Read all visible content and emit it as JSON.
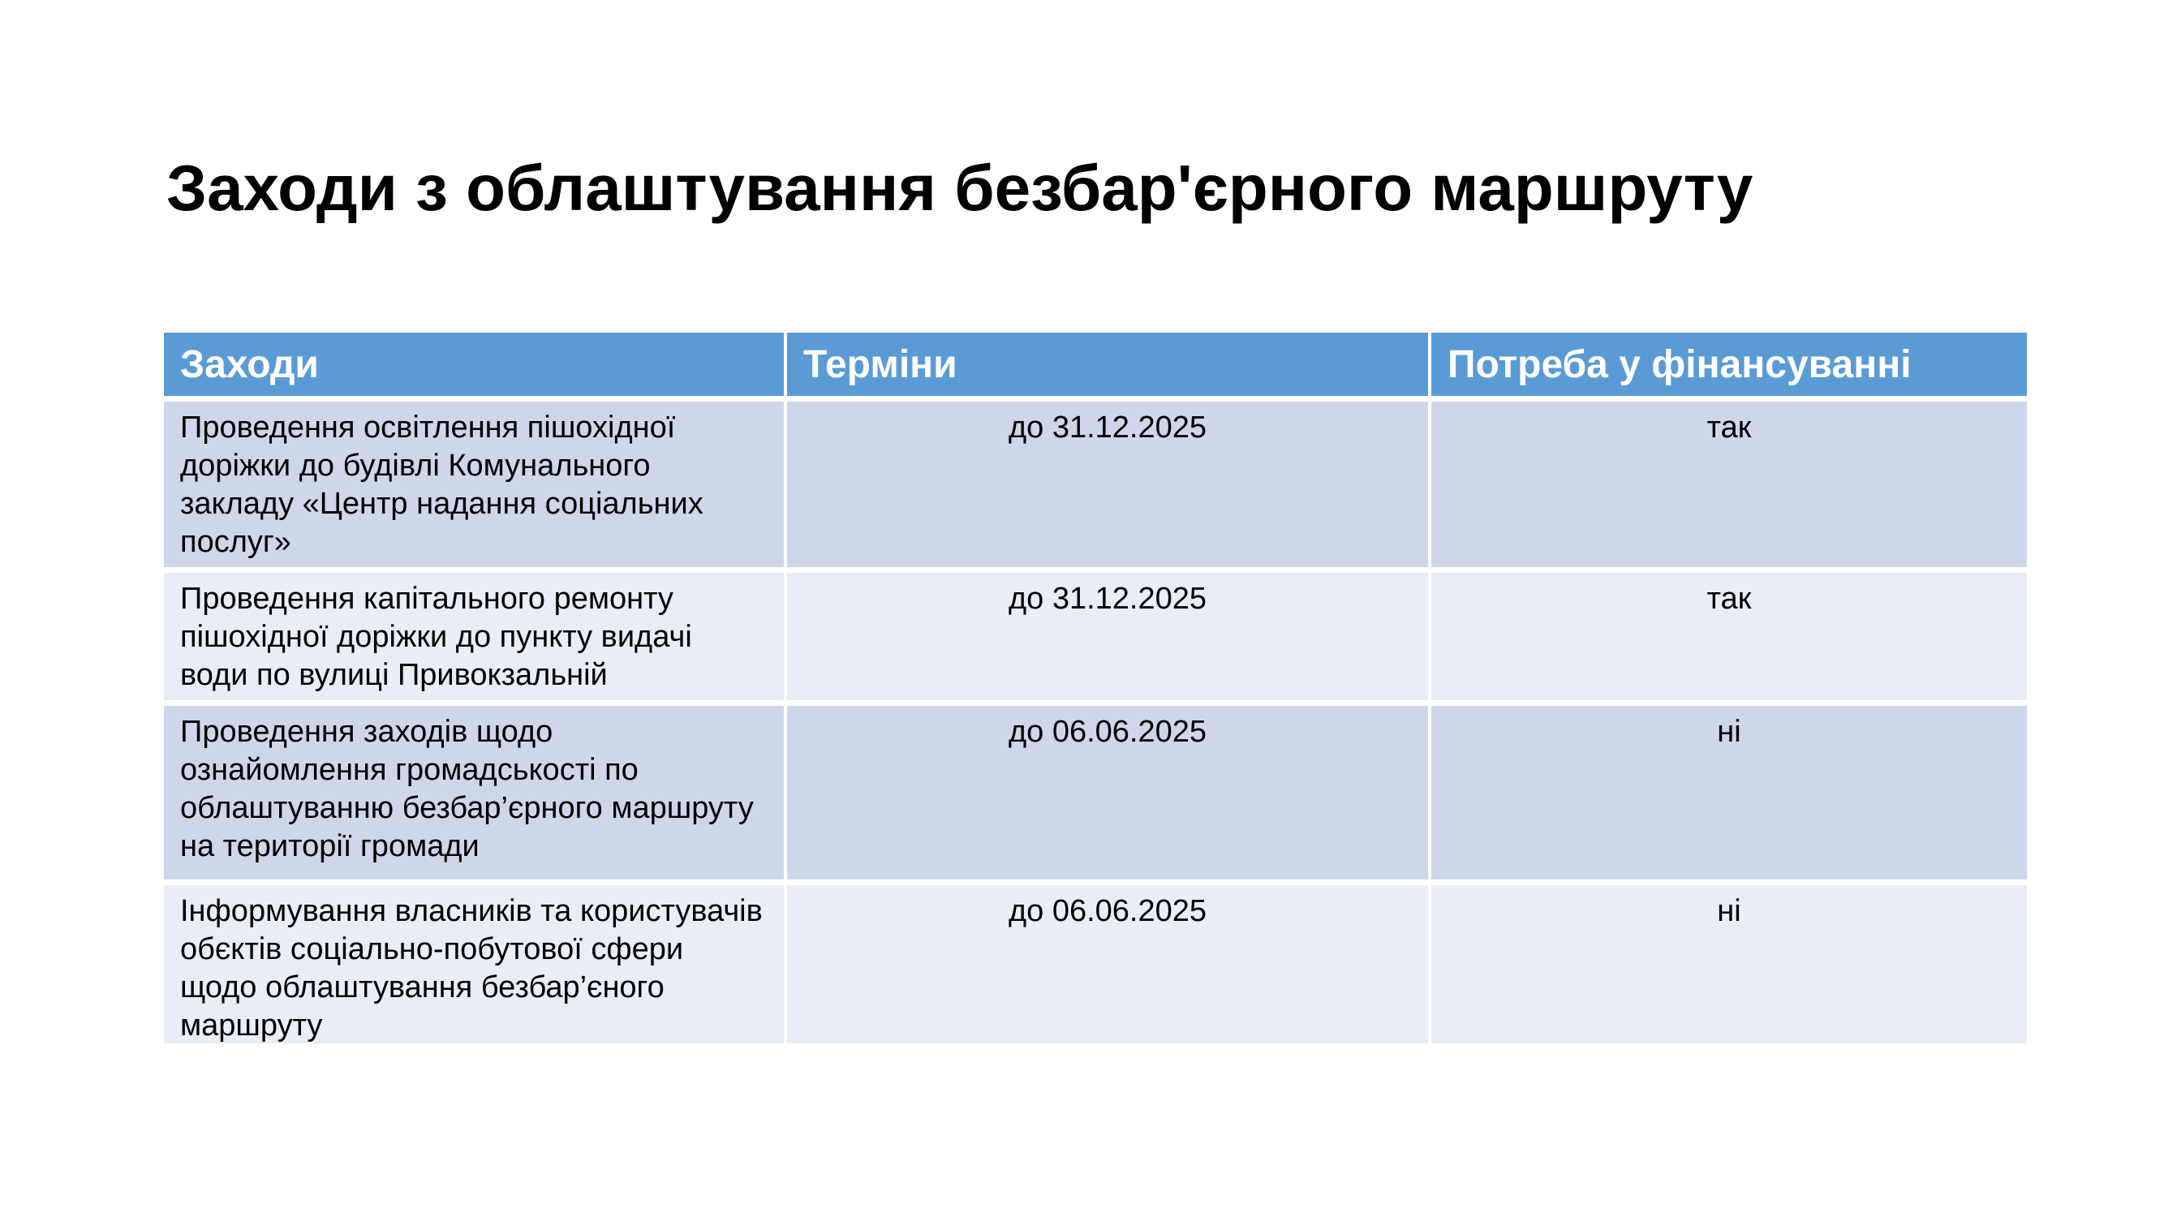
{
  "slide": {
    "title": "Заходи з облаштування безбар'єрного маршруту"
  },
  "table": {
    "columns": {
      "measures": "Заходи",
      "terms": "Терміни",
      "funding": "Потреба у фінансуванні"
    },
    "rows": [
      {
        "measure": "Проведення освітлення пішохідної\nдоріжки до будівлі Комунального\nзакладу «Центр надання соціальних\nпослуг»",
        "term": "до 31.12.2025",
        "funding": "так"
      },
      {
        "measure": "Проведення капітального ремонту\nпішохідної доріжки до пункту видачі\nводи по вулиці Привокзальній",
        "term": "до 31.12.2025",
        "funding": "так"
      },
      {
        "measure": "Проведення заходів щодо\nознайомлення громадськості по\nоблаштуванню безбар’єрного маршруту\nна території громади",
        "term": "до 06.06.2025",
        "funding": "ні"
      },
      {
        "measure": "Інформування власників та користувачів\nобєктів соціально-побутової сфери\nщодо облаштування безбар’єного\nмаршруту",
        "term": "до 06.06.2025",
        "funding": "ні"
      }
    ],
    "colors": {
      "header_bg": "#5B9BD5",
      "header_text": "#FFFFFF",
      "band_dark": "#CDD7E9",
      "band_light": "#E9EDF6"
    }
  }
}
